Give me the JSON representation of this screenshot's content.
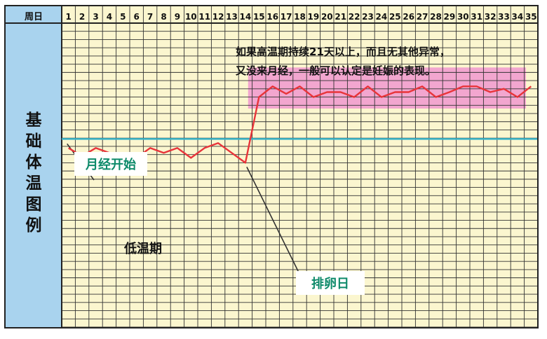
{
  "colors": {
    "background": "#fbf6cf",
    "sidebar": "#a9d3ee",
    "grid": "#333333",
    "curve": "#e8343a",
    "baseline": "#3ab4c8",
    "high_band": "#f2a6cf",
    "callout_box": "#ffffff",
    "callout_text": "#0e8a6a"
  },
  "chart_data": {
    "type": "line",
    "header_label": "周日",
    "xlabel": "周日",
    "ylabel": "基础体温图例",
    "x": [
      1,
      2,
      3,
      4,
      5,
      6,
      7,
      8,
      9,
      10,
      11,
      12,
      13,
      14,
      15,
      16,
      17,
      18,
      19,
      20,
      21,
      22,
      23,
      24,
      25,
      26,
      27,
      28,
      29,
      30,
      31,
      32,
      33,
      34,
      35
    ],
    "series": [
      {
        "values": [
          21.8,
          20.8,
          21.8,
          21.2,
          21.2,
          20.6,
          21.8,
          21.2,
          21.8,
          20.6,
          21.8,
          22.4,
          21.2,
          20.0,
          28.0,
          29.3,
          28.4,
          29.3,
          28.0,
          28.6,
          28.6,
          28.0,
          29.3,
          28.0,
          28.6,
          28.6,
          29.3,
          28.0,
          28.6,
          29.3,
          29.3,
          28.6,
          29.0,
          28.0,
          29.3
        ]
      }
    ],
    "grid": true,
    "baseline_level": 22.9,
    "high_band_range": [
      26.6,
      31.6
    ],
    "ylim": [
      0,
      37
    ]
  },
  "annotations": {
    "note_line1": "如果高温期持续21天以上，而且无其他异常，",
    "note_line2": "又没来月经，一般可以认定是妊娠的表现。",
    "menstruation_start": "月经开始",
    "low_temp_period": "低温期",
    "ovulation_day": "排卵日"
  }
}
